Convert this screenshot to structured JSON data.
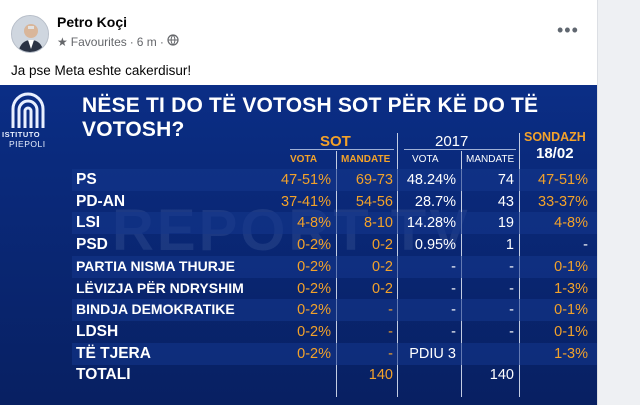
{
  "post": {
    "author": "Petro Koçi",
    "audience": "Favourites",
    "time": "6 m",
    "caption": "Ja pse Meta eshte cakerdisur!"
  },
  "image": {
    "title": "NËSE TI DO TË VOTOSH SOT PËR KË DO TË VOTOSH?",
    "logo_line1": "ISTITUTO",
    "logo_line2": "PIEPOLI",
    "watermark": "REPORT TV",
    "headers": {
      "sot": "SOT",
      "y2017": "2017",
      "sondazh_1": "SONDAZH",
      "sondazh_2": "18/02",
      "vota": "VOTA",
      "mandate": "MANDATE",
      "vota2": "VOTA",
      "mandate2": "MANDATE"
    },
    "rows": [
      {
        "party": "PS",
        "sot_vota": "47-51%",
        "sot_mandate": "69-73",
        "y2017_vota": "48.24%",
        "y2017_mandate": "74",
        "sondazh": "47-51%"
      },
      {
        "party": "PD-AN",
        "sot_vota": "37-41%",
        "sot_mandate": "54-56",
        "y2017_vota": "28.7%",
        "y2017_mandate": "43",
        "sondazh": "33-37%"
      },
      {
        "party": "LSI",
        "sot_vota": "4-8%",
        "sot_mandate": "8-10",
        "y2017_vota": "14.28%",
        "y2017_mandate": "19",
        "sondazh": "4-8%"
      },
      {
        "party": "PSD",
        "sot_vota": "0-2%",
        "sot_mandate": "0-2",
        "y2017_vota": "0.95%",
        "y2017_mandate": "1",
        "sondazh": "-"
      },
      {
        "party": "PARTIA NISMA THURJE",
        "sot_vota": "0-2%",
        "sot_mandate": "0-2",
        "y2017_vota": "-",
        "y2017_mandate": "-",
        "sondazh": "0-1%"
      },
      {
        "party": "LËVIZJA PËR NDRYSHIM",
        "sot_vota": "0-2%",
        "sot_mandate": "0-2",
        "y2017_vota": "-",
        "y2017_mandate": "-",
        "sondazh": "1-3%"
      },
      {
        "party": "BINDJA DEMOKRATIKE",
        "sot_vota": "0-2%",
        "sot_mandate": "-",
        "y2017_vota": "-",
        "y2017_mandate": "-",
        "sondazh": "0-1%"
      },
      {
        "party": "LDSH",
        "sot_vota": "0-2%",
        "sot_mandate": "-",
        "y2017_vota": "-",
        "y2017_mandate": "-",
        "sondazh": "0-1%"
      },
      {
        "party": "TË TJERA",
        "sot_vota": "0-2%",
        "sot_mandate": "-",
        "y2017_vota": "PDIU 3",
        "y2017_mandate": "",
        "sondazh": "1-3%"
      },
      {
        "party": "TOTALI",
        "sot_vota": "",
        "sot_mandate": "140",
        "y2017_vota": "",
        "y2017_mandate": "140",
        "sondazh": ""
      }
    ]
  }
}
